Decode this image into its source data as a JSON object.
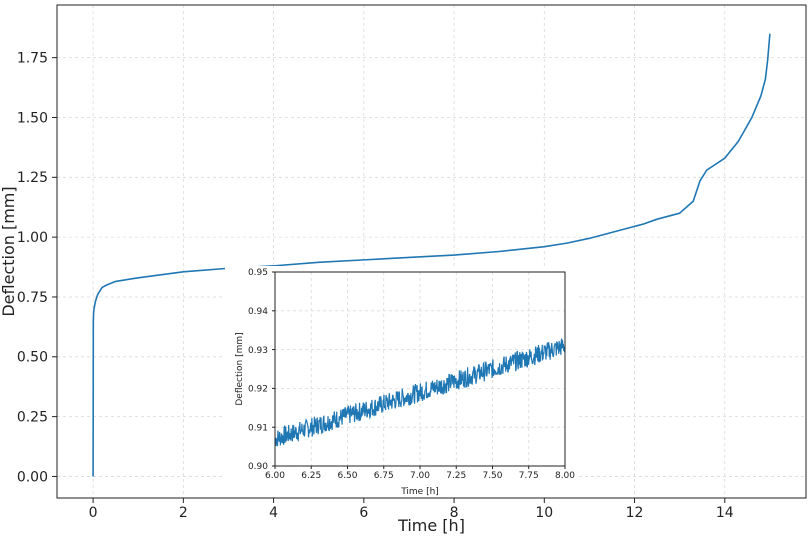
{
  "main_chart": {
    "xlabel": "Time [h]",
    "ylabel": "Deflection [mm]",
    "x_ticks": [
      "0",
      "2",
      "4",
      "6",
      "8",
      "10",
      "12",
      "14"
    ],
    "y_ticks": [
      "0.00",
      "0.25",
      "0.50",
      "0.75",
      "1.00",
      "1.25",
      "1.50",
      "1.75"
    ]
  },
  "inset_chart": {
    "xlabel": "Time [h]",
    "ylabel": "Deflection [mm]",
    "x_ticks": [
      "6.00",
      "6.25",
      "6.50",
      "6.75",
      "7.00",
      "7.25",
      "7.50",
      "7.75",
      "8.00"
    ],
    "y_ticks": [
      "0.90",
      "0.91",
      "0.92",
      "0.93",
      "0.94",
      "0.95"
    ]
  },
  "colors": {
    "series": "#1f77b4",
    "grid": "#d9d9d9",
    "axis": "#222222"
  },
  "chart_data": [
    {
      "type": "line",
      "xlabel": "Time [h]",
      "ylabel": "Deflection [mm]",
      "xlim": [
        -0.8,
        15.8
      ],
      "ylim": [
        -0.09,
        1.97
      ],
      "grid": true,
      "series": [
        {
          "x": [
            0,
            0.005,
            0.01,
            0.02,
            0.05,
            0.1,
            0.2,
            0.3,
            0.5,
            1.0,
            2.0,
            3.0,
            4.0,
            5.0,
            6.0,
            7.0,
            8.0,
            9.0,
            10.0,
            10.5,
            11.0,
            11.5,
            12.0,
            12.2,
            12.5,
            13.0,
            13.3,
            13.45,
            13.6,
            14.0,
            14.3,
            14.6,
            14.8,
            14.9,
            14.95,
            15.0
          ],
          "y": [
            0.0,
            0.65,
            0.68,
            0.7,
            0.73,
            0.76,
            0.79,
            0.8,
            0.815,
            0.83,
            0.855,
            0.87,
            0.88,
            0.895,
            0.905,
            0.915,
            0.925,
            0.94,
            0.96,
            0.975,
            0.995,
            1.02,
            1.045,
            1.055,
            1.075,
            1.1,
            1.15,
            1.235,
            1.28,
            1.33,
            1.4,
            1.5,
            1.59,
            1.66,
            1.74,
            1.85
          ]
        }
      ]
    },
    {
      "type": "line",
      "xlabel": "Time [h]",
      "ylabel": "Deflection [mm]",
      "xlim": [
        6.0,
        8.0
      ],
      "ylim": [
        0.9,
        0.95
      ],
      "grid": true,
      "series": [
        {
          "x": [
            6.0,
            8.0
          ],
          "y": [
            0.907,
            0.931
          ],
          "noise_band": 0.0025
        }
      ]
    }
  ]
}
